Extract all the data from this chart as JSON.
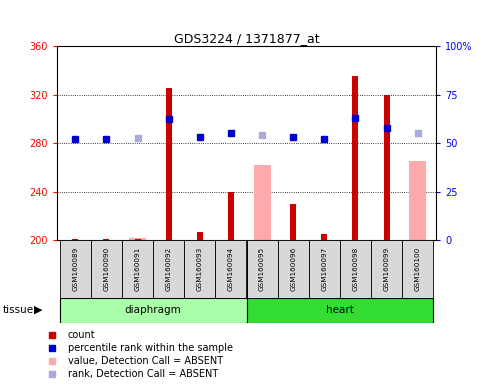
{
  "title": "GDS3224 / 1371877_at",
  "samples": [
    "GSM160089",
    "GSM160090",
    "GSM160091",
    "GSM160092",
    "GSM160093",
    "GSM160094",
    "GSM160095",
    "GSM160096",
    "GSM160097",
    "GSM160098",
    "GSM160099",
    "GSM160100"
  ],
  "ylim_left": [
    200,
    360
  ],
  "ylim_right": [
    0,
    100
  ],
  "yticks_left": [
    200,
    240,
    280,
    320,
    360
  ],
  "yticks_right": [
    0,
    25,
    50,
    75,
    100
  ],
  "ytick_labels_right": [
    "0",
    "25",
    "50",
    "75",
    "100%"
  ],
  "red_bar_values": [
    201,
    201,
    201,
    325,
    207,
    240,
    null,
    230,
    205,
    335,
    320,
    null
  ],
  "pink_bar_values": [
    null,
    null,
    202,
    null,
    null,
    null,
    262,
    null,
    null,
    null,
    null,
    265
  ],
  "dot_values": [
    283,
    283,
    284,
    300,
    285,
    288,
    287,
    285,
    283,
    301,
    292,
    288
  ],
  "dot_absent": [
    false,
    false,
    true,
    false,
    false,
    false,
    true,
    false,
    false,
    false,
    false,
    true
  ],
  "dot_color_present": "#0000cc",
  "dot_color_absent": "#aaaadd",
  "red_bar_color": "#cc0000",
  "pink_bar_color": "#ffaaaa",
  "diaphragm_color": "#aaffaa",
  "heart_color": "#33dd33",
  "bar_base": 200,
  "grid_yticks": [
    240,
    280,
    320
  ],
  "legend_entries": [
    {
      "color": "#cc0000",
      "label": "count"
    },
    {
      "color": "#0000cc",
      "label": "percentile rank within the sample"
    },
    {
      "color": "#ffaaaa",
      "label": "value, Detection Call = ABSENT"
    },
    {
      "color": "#aaaadd",
      "label": "rank, Detection Call = ABSENT"
    }
  ]
}
